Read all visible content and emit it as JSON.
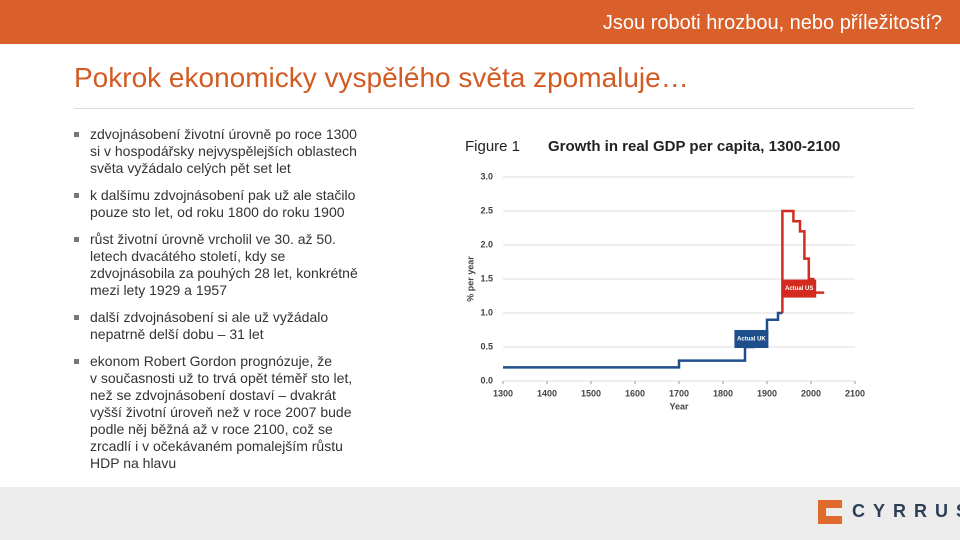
{
  "header": {
    "title": "Jsou roboti hrozbou, nebo příležitostí?"
  },
  "slide": {
    "title": "Pokrok ekonomicky vyspělého světa zpomaluje…",
    "bullets": [
      [
        "zdvojnásobení životní úrovně po roce 1300",
        "si v hospodářsky nejvyspělejších oblastech",
        "světa vyžádalo celých pět set let"
      ],
      [
        "k dalšímu zdvojnásobení pak už ale stačilo",
        "pouze sto let, od roku 1800 do roku 1900"
      ],
      [
        "růst životní úrovně vrcholil ve 30. až 50.",
        "letech dvacátého století, kdy se",
        "zdvojnásobila za pouhých 28 let, konkrétně",
        "mezi lety 1929 a 1957"
      ],
      [
        "další zdvojnásobení si ale už vyžádalo",
        "nepatrně delší dobu – 31 let"
      ],
      [
        "ekonom Robert Gordon prognózuje, že",
        "v současnosti už to trvá opět téměř sto let,",
        "než se zdvojnásobení dostaví – dvakrát",
        "vyšší životní úroveň než v roce 2007 bude",
        "podle něj běžná až v roce 2100, což se",
        "zrcadlí i v očekávaném pomalejším růstu",
        "HDP na hlavu"
      ]
    ]
  },
  "chart_data": {
    "type": "line",
    "figure_label": "Figure 1",
    "title": "Growth in real GDP per capita, 1300-2100",
    "x_label": "Year",
    "y_label": "% per year",
    "xlim": [
      1300,
      2100
    ],
    "xticks": [
      1300,
      1400,
      1500,
      1600,
      1700,
      1800,
      1900,
      2000,
      2100
    ],
    "ylim": [
      0,
      3
    ],
    "yticks": [
      {
        "value": 0,
        "label": "0.0"
      },
      0.5,
      {
        "value": 1,
        "label": "1.0"
      },
      1.5,
      {
        "value": 2,
        "label": "2.0"
      },
      2.5,
      {
        "value": 3,
        "label": "3.0"
      }
    ],
    "grid": true,
    "series": [
      {
        "name": "Actual UK",
        "color": "#1f4e8c",
        "x": [
          1300,
          1700,
          1700,
          1850,
          1850,
          1870,
          1870,
          1900,
          1900,
          1925,
          1925,
          1935
        ],
        "values": [
          0.2,
          0.2,
          0.3,
          0.3,
          0.5,
          0.5,
          0.7,
          0.7,
          0.9,
          0.9,
          1.0,
          1.0
        ]
      },
      {
        "name": "Actual US",
        "color": "#d42a20",
        "x": [
          1935,
          1935,
          1960,
          1960,
          1975,
          1975,
          1985,
          1985,
          1995,
          1995,
          2005,
          2005,
          2030
        ],
        "values": [
          1.0,
          2.5,
          2.5,
          2.35,
          2.35,
          2.2,
          2.2,
          1.8,
          1.8,
          1.5,
          1.5,
          1.3,
          1.3
        ]
      }
    ]
  },
  "footer": {
    "logo": "CYRRUS"
  }
}
